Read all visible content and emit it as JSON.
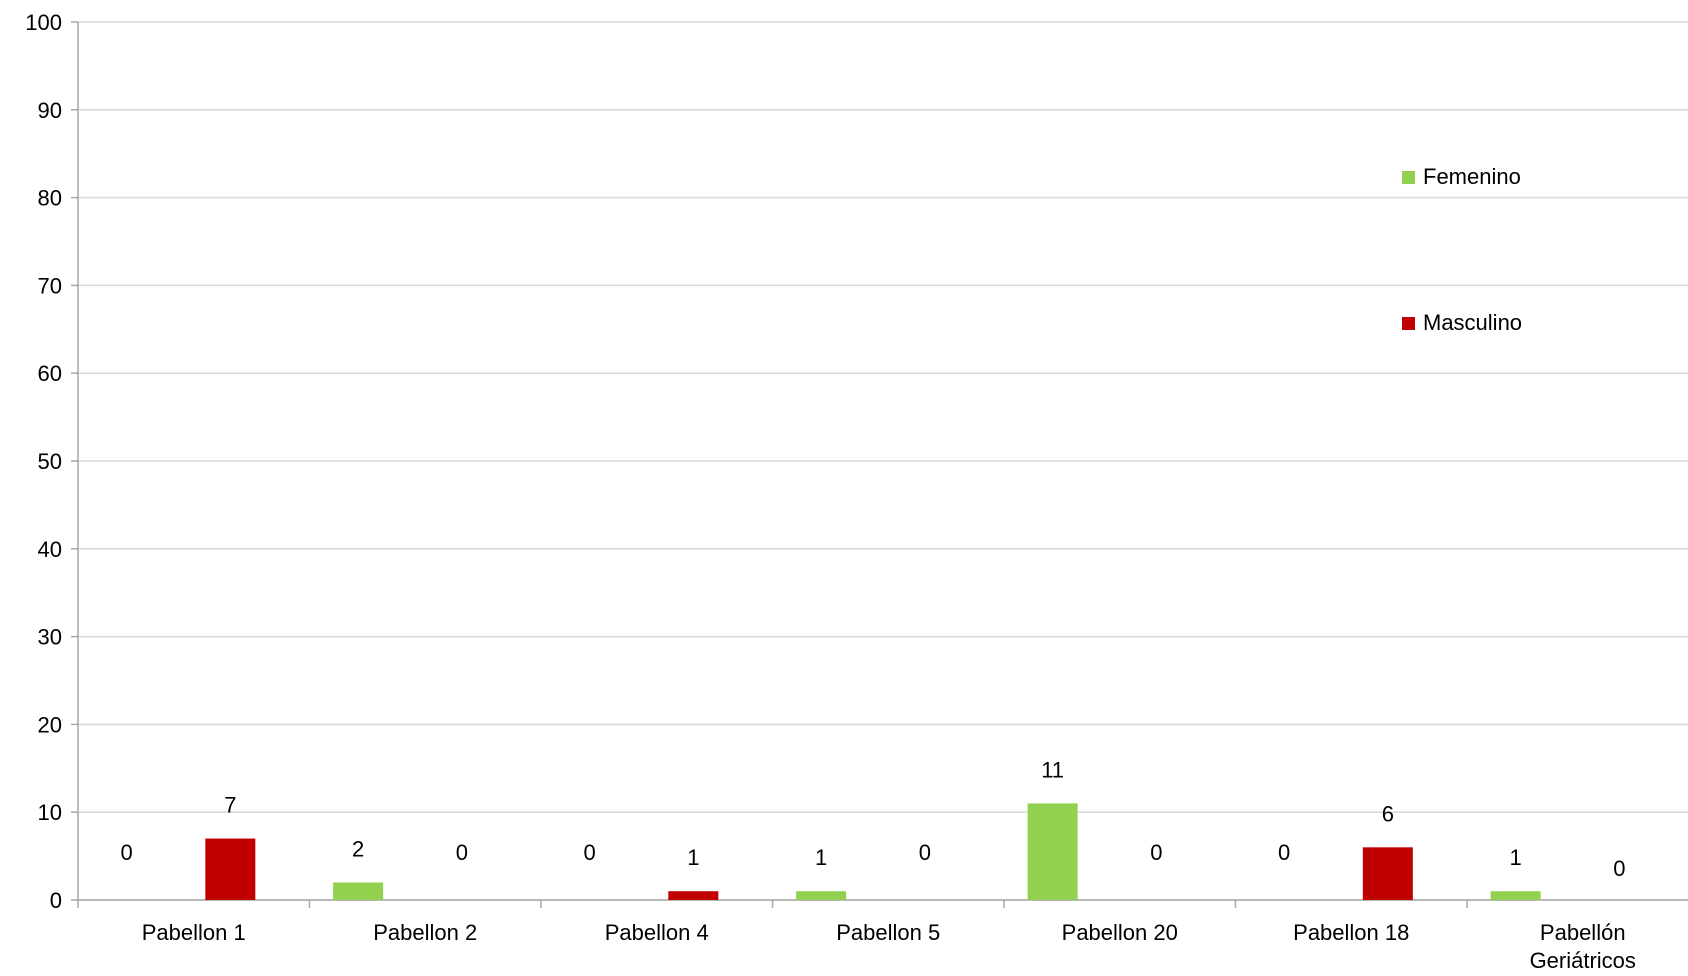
{
  "chart_data": {
    "type": "bar",
    "categories": [
      "Pabellon 1",
      "Pabellon 2",
      "Pabellon 4",
      "Pabellon 5",
      "Pabellon 20",
      "Pabellon 18",
      "Pabellón Geriátricos"
    ],
    "series": [
      {
        "name": "Femenino",
        "color": "#92d050",
        "values": [
          0,
          2,
          0,
          1,
          11,
          0,
          1
        ]
      },
      {
        "name": "Masculino",
        "color": "#c00000",
        "values": [
          7,
          0,
          1,
          0,
          0,
          6,
          0
        ]
      }
    ],
    "ylim": [
      0,
      100
    ],
    "yticks": [
      0,
      10,
      20,
      30,
      40,
      50,
      60,
      70,
      80,
      90,
      100
    ],
    "grid": true,
    "legend_position": "right",
    "title": "",
    "xlabel": "",
    "ylabel": ""
  }
}
